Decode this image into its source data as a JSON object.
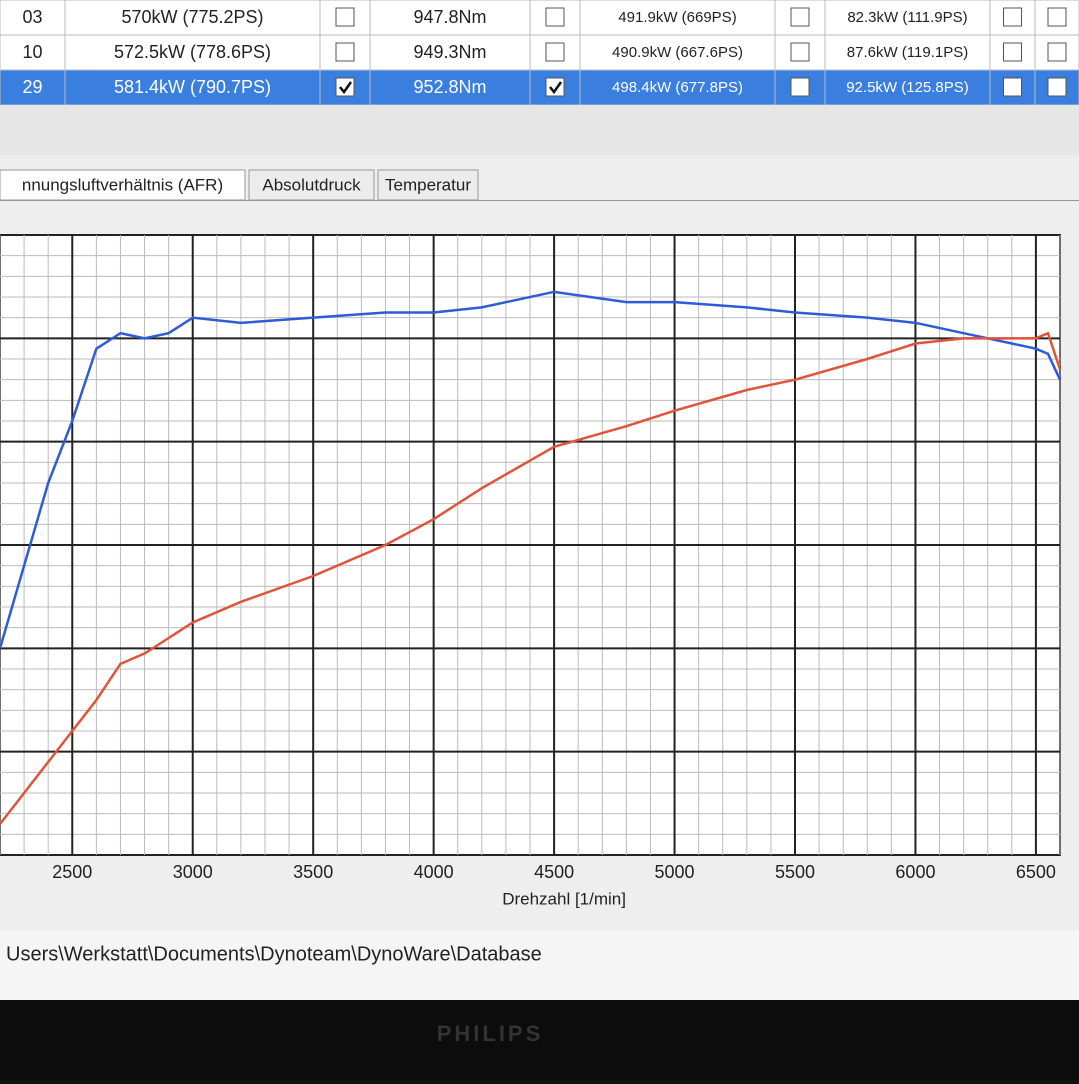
{
  "table": {
    "rows": [
      {
        "id": "03",
        "power": "570kW (775.2PS)",
        "power_checked": false,
        "torque": "947.8Nm",
        "torque_checked": false,
        "wheel": "491.9kW (669PS)",
        "wheel_checked": false,
        "loss": "82.3kW (111.9PS)",
        "loss_checked": false,
        "extra_checked": false
      },
      {
        "id": "10",
        "power": "572.5kW (778.6PS)",
        "power_checked": false,
        "torque": "949.3Nm",
        "torque_checked": false,
        "wheel": "490.9kW (667.6PS)",
        "wheel_checked": false,
        "loss": "87.6kW (119.1PS)",
        "loss_checked": false,
        "extra_checked": false
      },
      {
        "id": "29",
        "power": "581.4kW (790.7PS)",
        "power_checked": true,
        "torque": "952.8Nm",
        "torque_checked": true,
        "wheel": "498.4kW (677.8PS)",
        "wheel_checked": false,
        "loss": "92.5kW (125.8PS)",
        "loss_checked": false,
        "extra_checked": false,
        "selected": true
      }
    ]
  },
  "tabs": [
    "nnungsluftverhältnis (AFR)",
    "Absolutdruck",
    "Temperatur"
  ],
  "chart_data": {
    "type": "line",
    "x_label": "Drehzahl [1/min]",
    "x": [
      2200,
      2300,
      2400,
      2500,
      2600,
      2700,
      2800,
      2900,
      3000,
      3200,
      3500,
      3800,
      4000,
      4200,
      4500,
      4800,
      5000,
      5300,
      5500,
      5800,
      6000,
      6200,
      6400,
      6500,
      6550,
      6600
    ],
    "series": [
      {
        "color": "#2f5bd6",
        "values": [
          2.0,
          2.8,
          3.6,
          4.2,
          4.9,
          5.05,
          5.0,
          5.05,
          5.2,
          5.15,
          5.2,
          5.25,
          5.25,
          5.3,
          5.45,
          5.35,
          5.35,
          5.3,
          5.25,
          5.2,
          5.15,
          5.05,
          4.95,
          4.9,
          4.85,
          4.6
        ]
      },
      {
        "color": "#e0553a",
        "values": [
          0.3,
          0.6,
          0.9,
          1.2,
          1.5,
          1.85,
          1.95,
          2.1,
          2.25,
          2.45,
          2.7,
          3.0,
          3.25,
          3.55,
          3.95,
          4.15,
          4.3,
          4.5,
          4.6,
          4.8,
          4.95,
          5.0,
          5.0,
          5.0,
          5.05,
          4.7
        ]
      }
    ],
    "xlim": [
      2200,
      6600
    ],
    "ylim": [
      0,
      6
    ],
    "xticks": [
      2500,
      3000,
      3500,
      4000,
      4500,
      5000,
      5500,
      6000,
      6500
    ],
    "grid": true
  },
  "status": {
    "path": "Users\\Werkstatt\\Documents\\Dynoteam\\DynoWare\\Database"
  },
  "monitor": {
    "brand": "PHILIPS"
  }
}
